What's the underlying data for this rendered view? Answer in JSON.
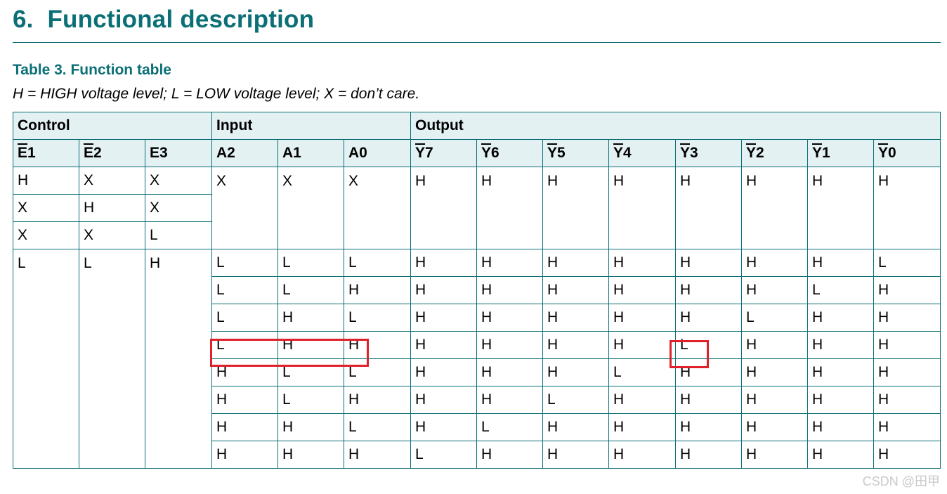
{
  "section": {
    "number": "6.",
    "title": "Functional description"
  },
  "table": {
    "caption": "Table 3. Function table",
    "legend": "H = HIGH voltage level; L = LOW voltage level; X = don’t care.",
    "groups": {
      "control": "Control",
      "input": "Input",
      "output": "Output"
    },
    "headers": {
      "e1": "E",
      "e1_suffix": "1",
      "e2": "E",
      "e2_suffix": "2",
      "e3": "E3",
      "a2": "A2",
      "a1": "A1",
      "a0": "A0",
      "y7": "Y",
      "y7_suffix": "7",
      "y6": "Y",
      "y6_suffix": "6",
      "y5": "Y",
      "y5_suffix": "5",
      "y4": "Y",
      "y4_suffix": "4",
      "y3": "Y",
      "y3_suffix": "3",
      "y2": "Y",
      "y2_suffix": "2",
      "y1": "Y",
      "y1_suffix": "1",
      "y0": "Y",
      "y0_suffix": "0"
    },
    "disabled_rows": [
      {
        "e1": "H",
        "e2": "X",
        "e3": "X"
      },
      {
        "e1": "X",
        "e2": "H",
        "e3": "X"
      },
      {
        "e1": "X",
        "e2": "X",
        "e3": "L"
      }
    ],
    "disabled_inputs": {
      "a2": "X",
      "a1": "X",
      "a0": "X"
    },
    "disabled_outputs": {
      "y7": "H",
      "y6": "H",
      "y5": "H",
      "y4": "H",
      "y3": "H",
      "y2": "H",
      "y1": "H",
      "y0": "H"
    },
    "enabled_control": {
      "e1": "L",
      "e2": "L",
      "e3": "H"
    },
    "enabled_rows": [
      {
        "a2": "L",
        "a1": "L",
        "a0": "L",
        "y": [
          "H",
          "H",
          "H",
          "H",
          "H",
          "H",
          "H",
          "L"
        ]
      },
      {
        "a2": "L",
        "a1": "L",
        "a0": "H",
        "y": [
          "H",
          "H",
          "H",
          "H",
          "H",
          "H",
          "L",
          "H"
        ]
      },
      {
        "a2": "L",
        "a1": "H",
        "a0": "L",
        "y": [
          "H",
          "H",
          "H",
          "H",
          "H",
          "L",
          "H",
          "H"
        ]
      },
      {
        "a2": "L",
        "a1": "H",
        "a0": "H",
        "y": [
          "H",
          "H",
          "H",
          "H",
          "L",
          "H",
          "H",
          "H"
        ]
      },
      {
        "a2": "H",
        "a1": "L",
        "a0": "L",
        "y": [
          "H",
          "H",
          "H",
          "L",
          "H",
          "H",
          "H",
          "H"
        ]
      },
      {
        "a2": "H",
        "a1": "L",
        "a0": "H",
        "y": [
          "H",
          "H",
          "L",
          "H",
          "H",
          "H",
          "H",
          "H"
        ]
      },
      {
        "a2": "H",
        "a1": "H",
        "a0": "L",
        "y": [
          "H",
          "L",
          "H",
          "H",
          "H",
          "H",
          "H",
          "H"
        ]
      },
      {
        "a2": "H",
        "a1": "H",
        "a0": "H",
        "y": [
          "L",
          "H",
          "H",
          "H",
          "H",
          "H",
          "H",
          "H"
        ]
      }
    ]
  },
  "annotations": {
    "highlight_color": "#e0202b",
    "highlight_input_row": 3,
    "highlight_output_col": "y3"
  },
  "colors": {
    "accent": "#0b6f76",
    "header_bg": "#e4f1f2"
  },
  "watermark": "CSDN @田甲"
}
